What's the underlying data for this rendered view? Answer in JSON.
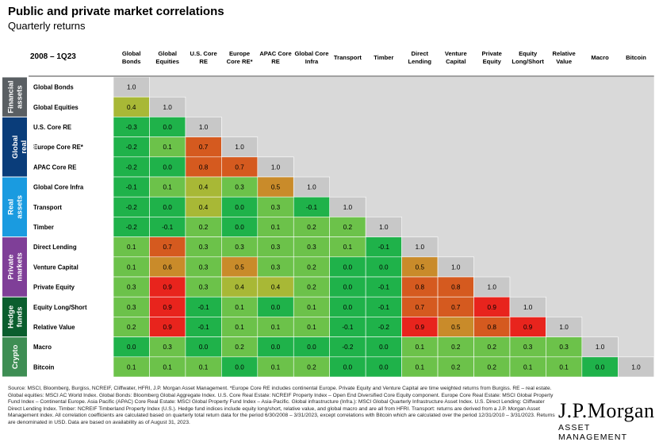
{
  "header": {
    "title": "Public and private market correlations",
    "subtitle": "Quarterly returns",
    "period": "2008 – 1Q23"
  },
  "colors": {
    "diag": "#c8c8c8",
    "lower_gray": "#d9d9d9",
    "scale": [
      "#1fb24a",
      "#6cc24a",
      "#a8b836",
      "#c98b2a",
      "#d55a1f",
      "#e8241d"
    ],
    "groups": {
      "Financial assets": "#5a5f63",
      "Global real estate": "#0a3d7a",
      "Real assets": "#1a9be0",
      "Private markets": "#7f3f98",
      "Hedge funds": "#0b5e2e",
      "Crypto": "#3e8e54"
    }
  },
  "groups": [
    {
      "label": "Financial assets",
      "start": 0,
      "count": 2
    },
    {
      "label": "Global real estate",
      "start": 2,
      "count": 3
    },
    {
      "label": "Real assets",
      "start": 5,
      "count": 3
    },
    {
      "label": "Private markets",
      "start": 8,
      "count": 3
    },
    {
      "label": "Hedge funds",
      "start": 11,
      "count": 2
    },
    {
      "label": "Crypto",
      "start": 13,
      "count": 2
    }
  ],
  "chart_data": {
    "type": "heatmap",
    "columns": [
      [
        "Global",
        "Bonds"
      ],
      [
        "Global",
        "Equities"
      ],
      [
        "U.S. Core",
        "RE"
      ],
      [
        "Europe",
        "Core RE*"
      ],
      [
        "APAC Core",
        "RE"
      ],
      [
        "Global Core",
        "Infra"
      ],
      [
        "Transport"
      ],
      [
        "Timber"
      ],
      [
        "Direct",
        "Lending"
      ],
      [
        "Venture",
        "Capital"
      ],
      [
        "Private",
        "Equity"
      ],
      [
        "Equity",
        "Long/Short"
      ],
      [
        "Relative",
        "Value"
      ],
      [
        "Macro"
      ],
      [
        "Bitcoin"
      ]
    ],
    "rows": [
      "Global Bonds",
      "Global Equities",
      "U.S. Core RE",
      "Europe Core RE*",
      "APAC Core RE",
      "Global Core Infra",
      "Transport",
      "Timber",
      "Direct Lending",
      "Venture Capital",
      "Private Equity",
      "Equity Long/Short",
      "Relative Value",
      "Macro",
      "Bitcoin"
    ],
    "values": [
      [
        "1.0"
      ],
      [
        "0.4",
        "1.0"
      ],
      [
        "-0.3",
        "0.0",
        "1.0"
      ],
      [
        "-0.2",
        "0.1",
        "0.7",
        "1.0"
      ],
      [
        "-0.2",
        "0.0",
        "0.8",
        "0.7",
        "1.0"
      ],
      [
        "-0.1",
        "0.1",
        "0.4",
        "0.3",
        "0.5",
        "1.0"
      ],
      [
        "-0.2",
        "0.0",
        "0.4",
        "0.0",
        "0.3",
        "-0.1",
        "1.0"
      ],
      [
        "-0.2",
        "-0.1",
        "0.2",
        "0.0",
        "0.1",
        "0.2",
        "0.2",
        "1.0"
      ],
      [
        "0.1",
        "0.7",
        "0.3",
        "0.3",
        "0.3",
        "0.3",
        "0.1",
        "-0.1",
        "1.0"
      ],
      [
        "0.1",
        "0.6",
        "0.3",
        "0.5",
        "0.3",
        "0.2",
        "0.0",
        "0.0",
        "0.5",
        "1.0"
      ],
      [
        "0.3",
        "0.9",
        "0.3",
        "0.4",
        "0.4",
        "0.2",
        "0.0",
        "-0.1",
        "0.8",
        "0.8",
        "1.0"
      ],
      [
        "0.3",
        "0.9",
        "-0.1",
        "0.1",
        "0.0",
        "0.1",
        "0.0",
        "-0.1",
        "0.7",
        "0.7",
        "0.9",
        "1.0"
      ],
      [
        "0.2",
        "0.9",
        "-0.1",
        "0.1",
        "0.1",
        "0.1",
        "-0.1",
        "-0.2",
        "0.9",
        "0.5",
        "0.8",
        "0.9",
        "1.0"
      ],
      [
        "0.0",
        "0.3",
        "0.0",
        "0.2",
        "0.0",
        "0.0",
        "-0.2",
        "0.0",
        "0.1",
        "0.2",
        "0.2",
        "0.3",
        "0.3",
        "1.0"
      ],
      [
        "0.1",
        "0.1",
        "0.1",
        "0.0",
        "0.1",
        "0.2",
        "0.0",
        "0.0",
        "0.1",
        "0.2",
        "0.2",
        "0.1",
        "0.1",
        "0.0",
        "1.0"
      ]
    ]
  },
  "footnote": "Source: MSCI, Bloomberg, Burgiss, NCREIF, Cliffwater, HFRI, J.P. Morgan Asset Management. *Europe Core RE includes continental Europe. Private Equity and Venture Capital are time weighted returns from Burgiss. RE – real estate. Global equities: MSCI AC World Index. Global Bonds: Bloomberg Global Aggregate Index. U.S. Core Real Estate: NCREIF Property Index – Open End Diversified Core Equity component. Europe Core Real Estate: MSCI Global Property Fund Index – Continental Europe. Asia Pacific (APAC) Core Real Estate: MSCI Global Property Fund Index – Asia-Pacific. Global infrastructure (Infra.): MSCI Global Quarterly Infrastructure Asset Index. U.S. Direct Lending: Cliffwater Direct Lending Index. Timber: NCREIF Timberland Property Index (U.S.). Hedge fund indices include equity long/short, relative value, and global macro and are all from HFRI. Transport: returns are derived from a J.P. Morgan Asset Management index. All correlation coefficients are calculated based on quarterly total return data for the period 6/30/2008 – 3/31/2023, except correlations with Bitcoin which are calculated over the period 12/31/2010 – 3/31/2023. Returns are denominated in USD. Data are based on availability as of August 31, 2023.",
  "logo": {
    "brand": "J.P.Morgan",
    "sub": "ASSET MANAGEMENT"
  }
}
